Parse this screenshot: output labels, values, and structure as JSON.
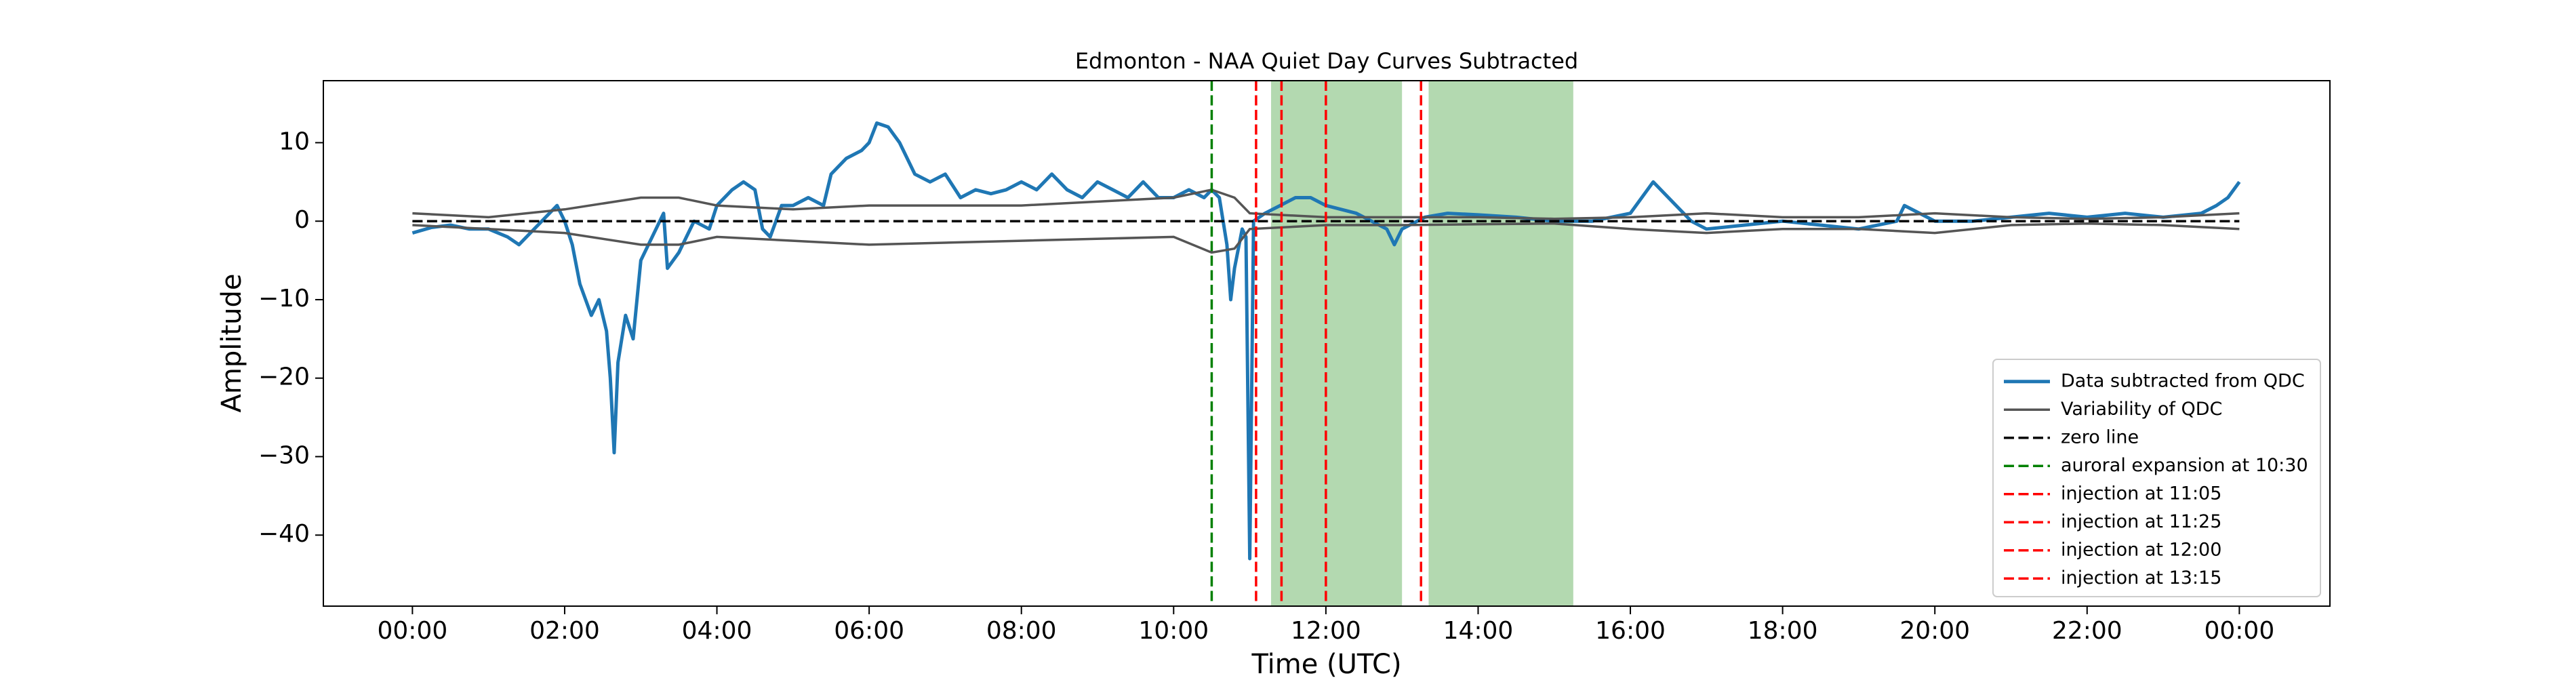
{
  "chart_data": {
    "type": "line",
    "title": "Edmonton - NAA Quiet Day Curves Subtracted",
    "x_label": "Time (UTC)",
    "y_label": "Amplitude",
    "xlim": [
      -1.17,
      25.19
    ],
    "ylim": [
      -49.05,
      17.9
    ],
    "xticks": [
      {
        "value": 0,
        "label": "00:00"
      },
      {
        "value": 2,
        "label": "02:00"
      },
      {
        "value": 4,
        "label": "04:00"
      },
      {
        "value": 6,
        "label": "06:00"
      },
      {
        "value": 8,
        "label": "08:00"
      },
      {
        "value": 10,
        "label": "10:00"
      },
      {
        "value": 12,
        "label": "12:00"
      },
      {
        "value": 14,
        "label": "14:00"
      },
      {
        "value": 16,
        "label": "16:00"
      },
      {
        "value": 18,
        "label": "18:00"
      },
      {
        "value": 20,
        "label": "20:00"
      },
      {
        "value": 22,
        "label": "22:00"
      },
      {
        "value": 24,
        "label": "00:00"
      }
    ],
    "yticks": [
      {
        "value": -40,
        "label": "−40"
      },
      {
        "value": -30,
        "label": "−30"
      },
      {
        "value": -20,
        "label": "−20"
      },
      {
        "value": -10,
        "label": "−10"
      },
      0,
      10
    ],
    "spans": [
      [
        11.28,
        13.0
      ],
      [
        13.35,
        15.25
      ]
    ],
    "span_color": "#b3d9b0",
    "series": [
      {
        "name": "Data subtracted from QDC",
        "color": "#1f77b4",
        "x": [
          0,
          0.25,
          0.5,
          0.75,
          1,
          1.25,
          1.4,
          1.6,
          1.8,
          1.9,
          2.0,
          2.1,
          2.2,
          2.35,
          2.45,
          2.55,
          2.6,
          2.65,
          2.7,
          2.8,
          2.9,
          3.0,
          3.1,
          3.2,
          3.3,
          3.35,
          3.5,
          3.6,
          3.7,
          3.9,
          4.0,
          4.2,
          4.35,
          4.5,
          4.6,
          4.7,
          4.85,
          5.0,
          5.2,
          5.4,
          5.5,
          5.7,
          5.9,
          6.0,
          6.1,
          6.25,
          6.4,
          6.6,
          6.8,
          7.0,
          7.2,
          7.4,
          7.6,
          7.8,
          8.0,
          8.2,
          8.4,
          8.6,
          8.8,
          9.0,
          9.2,
          9.4,
          9.6,
          9.8,
          10.0,
          10.2,
          10.4,
          10.5,
          10.6,
          10.7,
          10.75,
          10.8,
          10.9,
          10.95,
          11.0,
          11.05,
          11.2,
          11.4,
          11.6,
          11.8,
          12.0,
          12.2,
          12.4,
          12.6,
          12.8,
          12.9,
          13.0,
          13.3,
          13.6,
          14.0,
          14.5,
          15.0,
          15.5,
          16.0,
          16.3,
          16.5,
          16.8,
          17.0,
          17.5,
          18.0,
          18.5,
          19.0,
          19.5,
          19.6,
          19.8,
          20.0,
          20.5,
          21.0,
          21.5,
          22.0,
          22.5,
          23.0,
          23.5,
          23.7,
          23.85,
          24.0
        ],
        "values": [
          -1.5,
          -0.8,
          -0.5,
          -1,
          -1,
          -2,
          -3,
          -1,
          1,
          2,
          0,
          -3,
          -8,
          -12,
          -10,
          -14,
          -20,
          -29.5,
          -18,
          -12,
          -15,
          -5,
          -3,
          -1,
          1,
          -6,
          -4,
          -2,
          0,
          -1,
          2,
          4,
          5,
          4,
          -1,
          -2,
          2,
          2,
          3,
          2,
          6,
          8,
          9,
          10,
          12.5,
          12,
          10,
          6,
          5,
          6,
          3,
          4,
          3.5,
          4,
          5,
          4,
          6,
          4,
          3,
          5,
          4,
          3,
          5,
          3,
          3,
          4,
          3,
          4,
          3,
          -3,
          -10,
          -6,
          -1,
          -2,
          -43,
          0,
          1,
          2,
          3,
          3,
          2,
          1.5,
          1,
          0,
          -1,
          -3,
          -1,
          0.5,
          1,
          0.8,
          0.5,
          0,
          0,
          1,
          5,
          3,
          0,
          -1,
          -0.5,
          0,
          -0.5,
          -1,
          0,
          2,
          1,
          0,
          0,
          0.5,
          1,
          0.5,
          1,
          0.5,
          1,
          2,
          3,
          5
        ]
      },
      {
        "name": "Variability of QDC",
        "color": "#555555",
        "x": [
          0,
          1,
          2,
          3,
          3.5,
          4,
          5,
          6,
          8,
          10,
          10.5,
          10.8,
          11,
          12,
          13,
          14,
          15,
          16,
          17,
          18,
          19,
          20,
          21,
          22,
          23,
          24
        ],
        "upper": [
          1,
          0.5,
          1.5,
          3,
          3,
          2,
          1.5,
          2,
          2,
          3,
          4,
          3,
          1,
          0.5,
          0.5,
          0.5,
          0.3,
          0.5,
          1,
          0.5,
          0.5,
          1,
          0.5,
          0.3,
          0.5,
          1
        ],
        "lower": [
          -0.5,
          -1,
          -1.5,
          -3,
          -3,
          -2,
          -2.5,
          -3,
          -2.5,
          -2,
          -4,
          -3.5,
          -1,
          -0.5,
          -0.5,
          -0.4,
          -0.3,
          -1,
          -1.5,
          -1,
          -1,
          -1.5,
          -0.5,
          -0.3,
          -0.5,
          -1
        ]
      },
      {
        "name": "zero line",
        "color": "#000000",
        "dashed": true,
        "x": [
          0,
          24
        ],
        "values": [
          0,
          0
        ]
      }
    ],
    "vlines": [
      {
        "name": "auroral expansion at 10:30",
        "x": 10.5,
        "color": "#008000"
      },
      {
        "name": "injection at 11:05",
        "x": 11.083,
        "color": "#ff0000"
      },
      {
        "name": "injection at 11:25",
        "x": 11.417,
        "color": "#ff0000"
      },
      {
        "name": "injection at 12:00",
        "x": 12.0,
        "color": "#ff0000"
      },
      {
        "name": "injection at 13:15",
        "x": 13.25,
        "color": "#ff0000"
      }
    ],
    "legend": "lower right"
  }
}
